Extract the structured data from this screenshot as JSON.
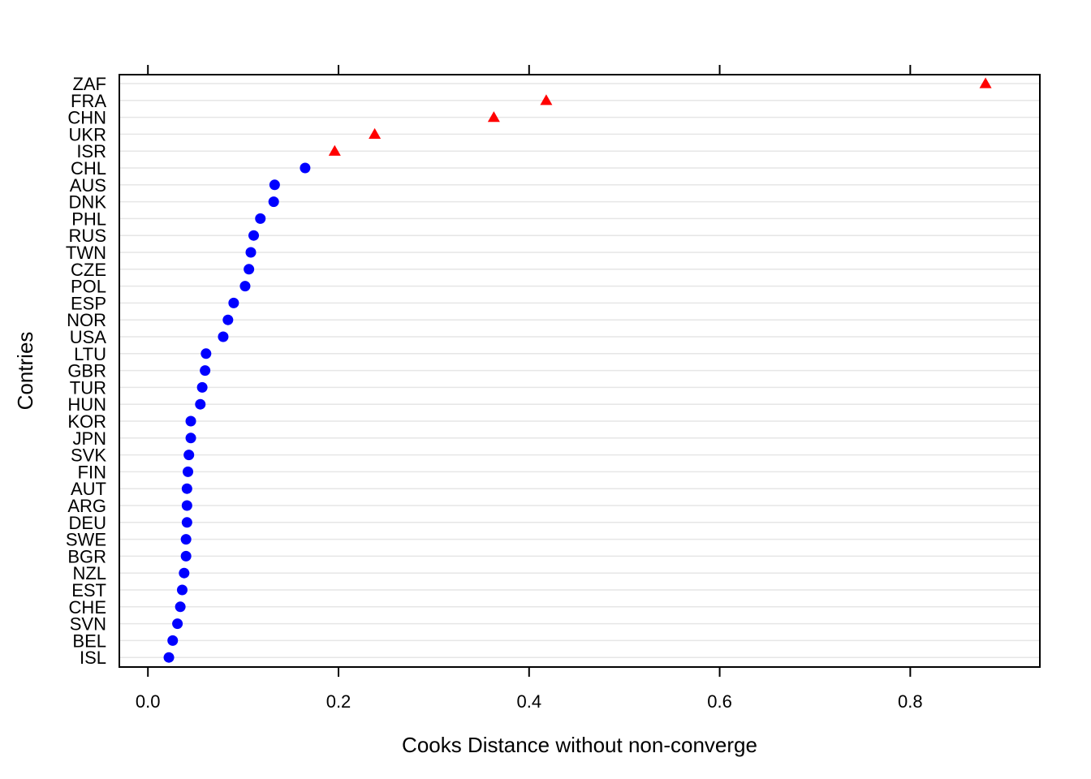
{
  "chart_data": {
    "type": "dotplot",
    "xlabel": "Cooks Distance without non-converge",
    "ylabel": "Contries",
    "xlim": [
      -0.03,
      0.936
    ],
    "xticks": [
      0.0,
      0.2,
      0.4,
      0.6,
      0.8
    ],
    "xtick_labels": [
      "0.0",
      "0.2",
      "0.4",
      "0.6",
      "0.8"
    ],
    "grid": true,
    "categories": [
      "ZAF",
      "FRA",
      "CHN",
      "UKR",
      "ISR",
      "CHL",
      "AUS",
      "DNK",
      "PHL",
      "RUS",
      "TWN",
      "CZE",
      "POL",
      "ESP",
      "NOR",
      "USA",
      "LTU",
      "GBR",
      "TUR",
      "HUN",
      "KOR",
      "JPN",
      "SVK",
      "FIN",
      "AUT",
      "ARG",
      "DEU",
      "SWE",
      "BGR",
      "NZL",
      "EST",
      "CHE",
      "SVN",
      "BEL",
      "ISL"
    ],
    "values": [
      0.879,
      0.418,
      0.363,
      0.238,
      0.196,
      0.165,
      0.133,
      0.132,
      0.118,
      0.111,
      0.108,
      0.106,
      0.102,
      0.09,
      0.084,
      0.079,
      0.061,
      0.06,
      0.057,
      0.055,
      0.045,
      0.045,
      0.043,
      0.042,
      0.041,
      0.041,
      0.041,
      0.04,
      0.04,
      0.038,
      0.036,
      0.034,
      0.031,
      0.026,
      0.022
    ],
    "highlight_threshold": 0.19,
    "colors": {
      "normal": "#0000ff",
      "highlight": "#ff0000",
      "grid": "#e6e6e6",
      "axis": "#000000"
    },
    "markers": {
      "normal": "circle",
      "highlight": "triangle"
    }
  }
}
